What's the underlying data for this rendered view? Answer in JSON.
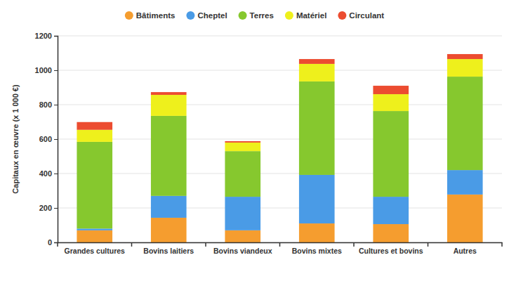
{
  "chart_data": {
    "type": "bar",
    "stacked": true,
    "grid": true,
    "legend": "top",
    "y_label": "Capitaux en œuvre (x 1 000 €)",
    "categories": [
      "Grandes cultures",
      "Bovins laitiers",
      "Bovins viandeux",
      "Bovins mixtes",
      "Cultures et bovins",
      "Autres"
    ],
    "series": [
      {
        "name": "Bâtiments",
        "color": "#f59d2f",
        "values": [
          70,
          143,
          70,
          110,
          106,
          278
        ]
      },
      {
        "name": "Cheptel",
        "color": "#4a9be6",
        "values": [
          10,
          127,
          195,
          282,
          159,
          142
        ]
      },
      {
        "name": "Terres",
        "color": "#86c82e",
        "values": [
          504,
          465,
          265,
          543,
          498,
          543
        ]
      },
      {
        "name": "Matériel",
        "color": "#eef01c",
        "values": [
          70,
          122,
          50,
          102,
          98,
          102
        ]
      },
      {
        "name": "Circulant",
        "color": "#ec4c30",
        "values": [
          45,
          16,
          8,
          28,
          49,
          29
        ]
      }
    ],
    "ylim": [
      0,
      1200
    ],
    "yticks": [
      0,
      200,
      400,
      600,
      800,
      1000,
      1200
    ]
  }
}
